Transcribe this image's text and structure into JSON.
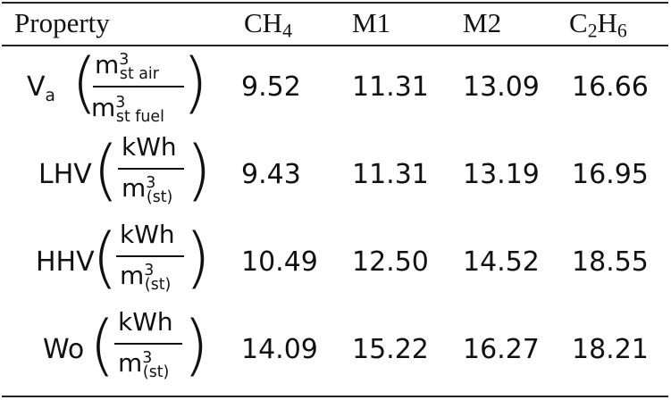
{
  "table": {
    "headers": [
      "Property",
      "CH₄",
      "M1",
      "M2",
      "C₂H₆"
    ],
    "header_parts": {
      "property": "Property",
      "ch4_base": "CH",
      "ch4_sub": "4",
      "m1": "M1",
      "m2": "M2",
      "c2h6_a": "C",
      "c2h6_sub1": "2",
      "c2h6_b": "H",
      "c2h6_sub2": "6"
    },
    "rows": [
      {
        "name": "V",
        "name_sub": "a",
        "unit_num_base": "m",
        "unit_num_sup": "3",
        "unit_num_sub": "st air",
        "unit_den_base": "m",
        "unit_den_sup": "3",
        "unit_den_sub": "st fuel",
        "values": [
          "9.52",
          "11.31",
          "13.09",
          "16.66"
        ]
      },
      {
        "name": "LHV",
        "unit_num": "kWh",
        "unit_den_base": "m",
        "unit_den_sup": "3",
        "unit_den_sub": "(st)",
        "values": [
          "9.43",
          "11.31",
          "13.19",
          "16.95"
        ]
      },
      {
        "name": "HHV",
        "unit_num": "kWh",
        "unit_den_base": "m",
        "unit_den_sup": "3",
        "unit_den_sub": "(st)",
        "values": [
          "10.49",
          "12.50",
          "14.52",
          "18.55"
        ]
      },
      {
        "name": "Wo",
        "unit_num": "kWh",
        "unit_den_base": "m",
        "unit_den_sup": "3",
        "unit_den_sub": "(st)",
        "values": [
          "14.09",
          "15.22",
          "16.27",
          "18.21"
        ]
      }
    ]
  }
}
